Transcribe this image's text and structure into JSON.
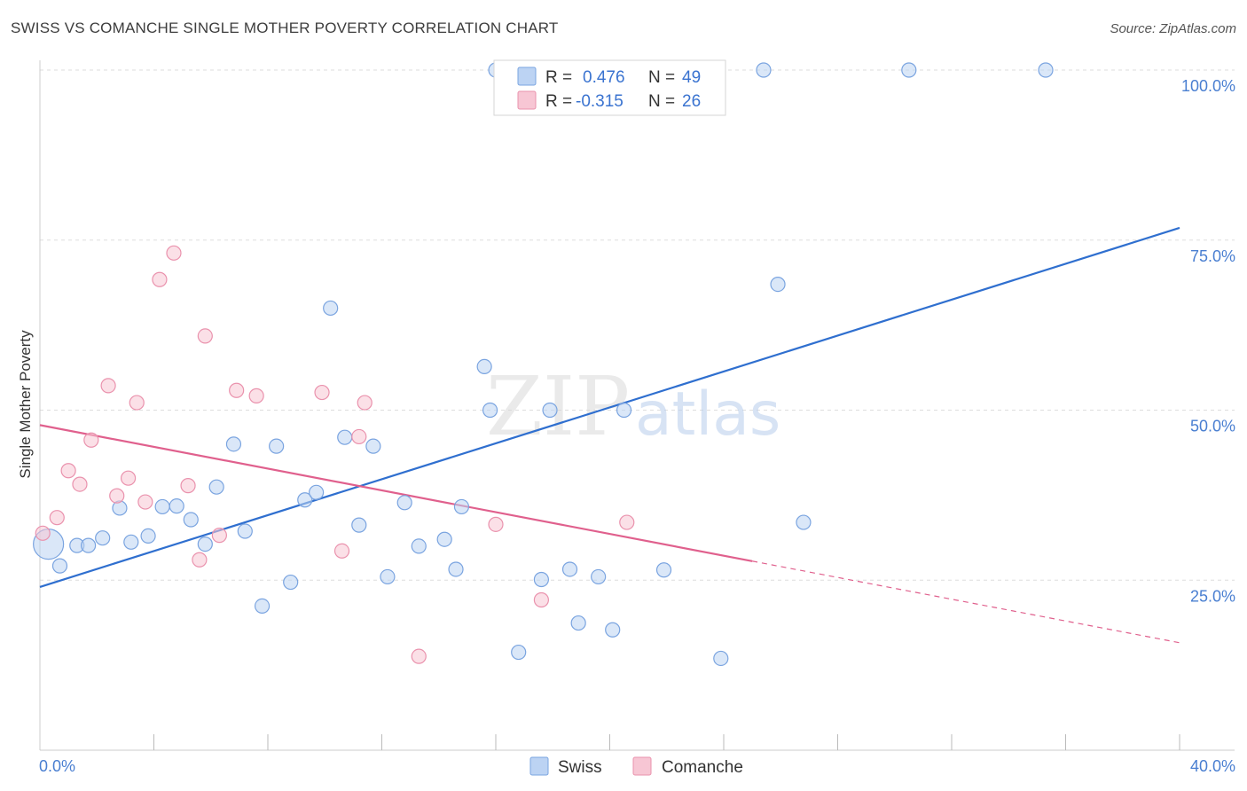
{
  "title": "SWISS VS COMANCHE SINGLE MOTHER POVERTY CORRELATION CHART",
  "source": "Source: ZipAtlas.com",
  "watermark": {
    "zip": "ZIP",
    "atlas": "atlas"
  },
  "colors": {
    "swiss_fill": "#bcd3f3",
    "swiss_stroke": "#7aa4e0",
    "swiss_line": "#2f6fcf",
    "comanche_fill": "#f7c6d4",
    "comanche_stroke": "#ea92ad",
    "comanche_line": "#e0608d",
    "tick_text": "#4a7fd1",
    "grid": "#dddddd"
  },
  "legend": {
    "swiss": {
      "r_label": "R =",
      "r_value": "0.476",
      "n_label": "N =",
      "n_value": "49"
    },
    "comanche": {
      "r_label": "R =",
      "r_value": "-0.315",
      "n_label": "N =",
      "n_value": "26"
    }
  },
  "chart_data": {
    "type": "scatter",
    "ylabel": "Single Mother Poverty",
    "xlim": [
      0,
      40
    ],
    "ylim": [
      0,
      100
    ],
    "x_tick_labels": [
      {
        "value": 0,
        "label": "0.0%"
      },
      {
        "value": 40,
        "label": "40.0%"
      }
    ],
    "y_tick_labels": [
      {
        "value": 25,
        "label": "25.0%"
      },
      {
        "value": 50,
        "label": "50.0%"
      },
      {
        "value": 75,
        "label": "75.0%"
      },
      {
        "value": 100,
        "label": "100.0%"
      }
    ],
    "y_gridlines": [
      25,
      50,
      75,
      100
    ],
    "x_minor_ticks": [
      4,
      8,
      12,
      16,
      20,
      24,
      28,
      32,
      36,
      40
    ],
    "series": [
      {
        "name": "Swiss",
        "points": [
          [
            0.3,
            30.3,
            "large"
          ],
          [
            0.7,
            27.1
          ],
          [
            1.3,
            30.1
          ],
          [
            1.7,
            30.1
          ],
          [
            2.2,
            31.2
          ],
          [
            2.8,
            35.6
          ],
          [
            3.2,
            30.6
          ],
          [
            3.8,
            31.5
          ],
          [
            4.3,
            35.8
          ],
          [
            4.8,
            35.9
          ],
          [
            5.3,
            33.9
          ],
          [
            5.8,
            30.3
          ],
          [
            6.2,
            38.7
          ],
          [
            6.8,
            45.0
          ],
          [
            7.2,
            32.2
          ],
          [
            7.8,
            21.2
          ],
          [
            8.3,
            44.7
          ],
          [
            8.8,
            24.7
          ],
          [
            9.3,
            36.8
          ],
          [
            9.7,
            37.9
          ],
          [
            10.2,
            65.0
          ],
          [
            10.7,
            46.0
          ],
          [
            11.2,
            33.1
          ],
          [
            11.7,
            44.7
          ],
          [
            12.2,
            25.5
          ],
          [
            12.8,
            36.4
          ],
          [
            13.3,
            30.0
          ],
          [
            14.2,
            31.0
          ],
          [
            14.6,
            26.6
          ],
          [
            14.8,
            35.8
          ],
          [
            15.6,
            56.4
          ],
          [
            15.8,
            50.0
          ],
          [
            16.0,
            100.0
          ],
          [
            16.8,
            14.4
          ],
          [
            17.6,
            25.1
          ],
          [
            17.9,
            50.0
          ],
          [
            18.6,
            26.6
          ],
          [
            18.9,
            18.7
          ],
          [
            19.6,
            25.5
          ],
          [
            20.1,
            17.7
          ],
          [
            20.5,
            50.0
          ],
          [
            21.9,
            100.0
          ],
          [
            21.9,
            26.5
          ],
          [
            23.9,
            13.5
          ],
          [
            25.4,
            100.0
          ],
          [
            25.9,
            68.5
          ],
          [
            26.8,
            33.5
          ],
          [
            30.5,
            100.0
          ],
          [
            35.3,
            100.0
          ]
        ]
      },
      {
        "name": "Comanche",
        "points": [
          [
            0.1,
            31.9
          ],
          [
            0.6,
            34.2
          ],
          [
            1.0,
            41.1
          ],
          [
            1.4,
            39.1
          ],
          [
            1.8,
            45.6
          ],
          [
            2.4,
            53.6
          ],
          [
            2.7,
            37.4
          ],
          [
            3.1,
            40.0
          ],
          [
            3.4,
            51.1
          ],
          [
            3.7,
            36.5
          ],
          [
            4.2,
            69.2
          ],
          [
            4.7,
            73.1
          ],
          [
            5.2,
            38.9
          ],
          [
            5.6,
            28.0
          ],
          [
            5.8,
            60.9
          ],
          [
            6.3,
            31.6
          ],
          [
            6.9,
            52.9
          ],
          [
            7.6,
            52.1
          ],
          [
            9.9,
            52.6
          ],
          [
            10.6,
            29.3
          ],
          [
            11.2,
            46.1
          ],
          [
            11.4,
            51.1
          ],
          [
            13.3,
            13.8
          ],
          [
            16.0,
            33.2
          ],
          [
            17.6,
            22.1
          ],
          [
            20.6,
            33.5
          ]
        ]
      }
    ],
    "trend_lines": [
      {
        "series": "Swiss",
        "x1": 0,
        "y1": 24.0,
        "x2": 40,
        "y2": 76.8,
        "dashed_from": null
      },
      {
        "series": "Comanche",
        "x1": 0,
        "y1": 47.8,
        "x2": 40,
        "y2": 15.8,
        "dashed_from": 25
      }
    ]
  }
}
